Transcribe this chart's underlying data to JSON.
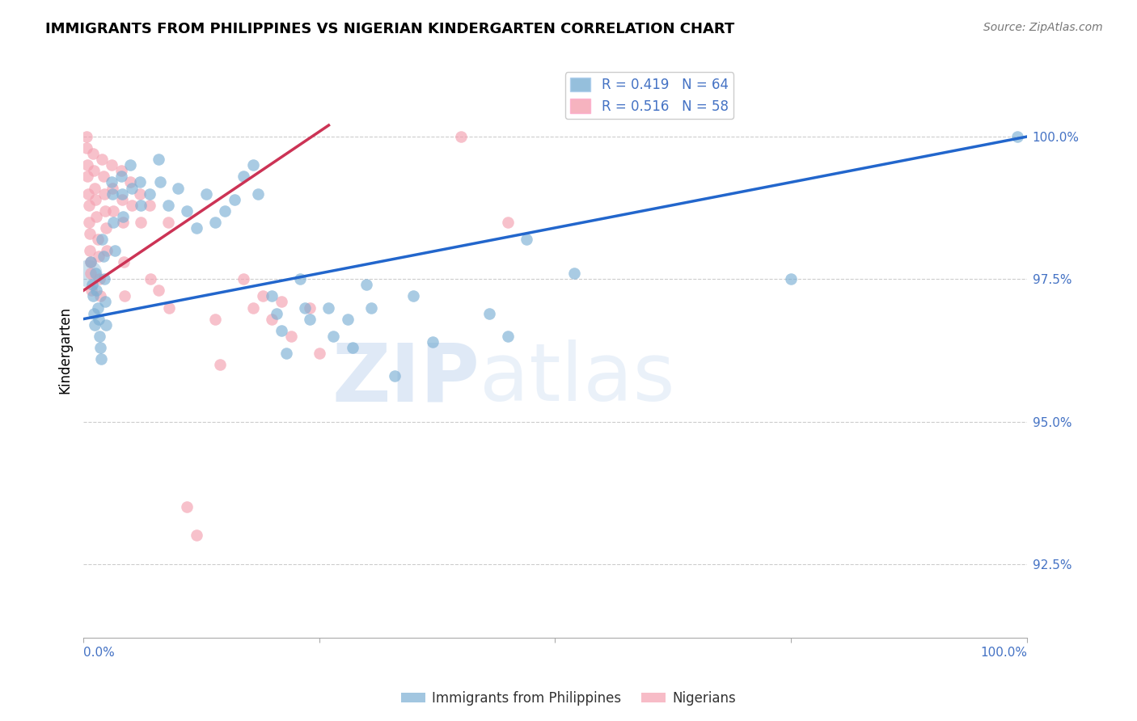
{
  "title": "IMMIGRANTS FROM PHILIPPINES VS NIGERIAN KINDERGARTEN CORRELATION CHART",
  "source": "Source: ZipAtlas.com",
  "ylabel": "Kindergarten",
  "y_ticks": [
    92.5,
    95.0,
    97.5,
    100.0
  ],
  "y_tick_labels": [
    "92.5%",
    "95.0%",
    "97.5%",
    "100.0%"
  ],
  "x_range": [
    0.0,
    100.0
  ],
  "y_range": [
    91.2,
    101.3
  ],
  "legend_blue_r": "R = 0.419",
  "legend_blue_n": "N = 64",
  "legend_pink_r": "R = 0.516",
  "legend_pink_n": "N = 58",
  "legend_label_blue": "Immigrants from Philippines",
  "legend_label_pink": "Nigerians",
  "blue_color": "#7bafd4",
  "pink_color": "#f4a0b0",
  "trendline_blue": "#2266cc",
  "trendline_pink": "#cc3355",
  "watermark_zip": "ZIP",
  "watermark_atlas": "atlas",
  "blue_scatter": [
    [
      0.8,
      97.8
    ],
    [
      0.9,
      97.4
    ],
    [
      1.0,
      97.2
    ],
    [
      1.1,
      96.9
    ],
    [
      1.2,
      96.7
    ],
    [
      1.3,
      97.6
    ],
    [
      1.4,
      97.3
    ],
    [
      1.5,
      97.0
    ],
    [
      1.6,
      96.8
    ],
    [
      1.7,
      96.5
    ],
    [
      1.8,
      96.3
    ],
    [
      1.9,
      96.1
    ],
    [
      2.0,
      98.2
    ],
    [
      2.1,
      97.9
    ],
    [
      2.2,
      97.5
    ],
    [
      2.3,
      97.1
    ],
    [
      2.4,
      96.7
    ],
    [
      3.0,
      99.2
    ],
    [
      3.1,
      99.0
    ],
    [
      3.2,
      98.5
    ],
    [
      3.3,
      98.0
    ],
    [
      4.0,
      99.3
    ],
    [
      4.1,
      99.0
    ],
    [
      4.2,
      98.6
    ],
    [
      5.0,
      99.5
    ],
    [
      5.1,
      99.1
    ],
    [
      6.0,
      99.2
    ],
    [
      6.1,
      98.8
    ],
    [
      7.0,
      99.0
    ],
    [
      8.0,
      99.6
    ],
    [
      8.1,
      99.2
    ],
    [
      9.0,
      98.8
    ],
    [
      10.0,
      99.1
    ],
    [
      11.0,
      98.7
    ],
    [
      12.0,
      98.4
    ],
    [
      13.0,
      99.0
    ],
    [
      14.0,
      98.5
    ],
    [
      15.0,
      98.7
    ],
    [
      16.0,
      98.9
    ],
    [
      17.0,
      99.3
    ],
    [
      18.0,
      99.5
    ],
    [
      18.5,
      99.0
    ],
    [
      20.0,
      97.2
    ],
    [
      20.5,
      96.9
    ],
    [
      21.0,
      96.6
    ],
    [
      21.5,
      96.2
    ],
    [
      23.0,
      97.5
    ],
    [
      23.5,
      97.0
    ],
    [
      24.0,
      96.8
    ],
    [
      26.0,
      97.0
    ],
    [
      26.5,
      96.5
    ],
    [
      28.0,
      96.8
    ],
    [
      28.5,
      96.3
    ],
    [
      30.0,
      97.4
    ],
    [
      30.5,
      97.0
    ],
    [
      33.0,
      95.8
    ],
    [
      35.0,
      97.2
    ],
    [
      37.0,
      96.4
    ],
    [
      43.0,
      96.9
    ],
    [
      45.0,
      96.5
    ],
    [
      47.0,
      98.2
    ],
    [
      52.0,
      97.6
    ],
    [
      75.0,
      97.5
    ],
    [
      99.0,
      100.0
    ]
  ],
  "pink_scatter": [
    [
      0.3,
      100.0
    ],
    [
      0.35,
      99.8
    ],
    [
      0.4,
      99.5
    ],
    [
      0.45,
      99.3
    ],
    [
      0.5,
      99.0
    ],
    [
      0.55,
      98.8
    ],
    [
      0.6,
      98.5
    ],
    [
      0.65,
      98.3
    ],
    [
      0.7,
      98.0
    ],
    [
      0.75,
      97.8
    ],
    [
      0.8,
      97.6
    ],
    [
      0.85,
      97.3
    ],
    [
      1.0,
      99.7
    ],
    [
      1.1,
      99.4
    ],
    [
      1.2,
      99.1
    ],
    [
      1.3,
      98.9
    ],
    [
      1.4,
      98.6
    ],
    [
      1.5,
      98.2
    ],
    [
      1.6,
      97.9
    ],
    [
      1.7,
      97.5
    ],
    [
      1.8,
      97.2
    ],
    [
      2.0,
      99.6
    ],
    [
      2.1,
      99.3
    ],
    [
      2.2,
      99.0
    ],
    [
      2.3,
      98.7
    ],
    [
      2.4,
      98.4
    ],
    [
      2.5,
      98.0
    ],
    [
      3.0,
      99.5
    ],
    [
      3.1,
      99.1
    ],
    [
      3.2,
      98.7
    ],
    [
      4.0,
      99.4
    ],
    [
      4.1,
      98.9
    ],
    [
      4.2,
      98.5
    ],
    [
      4.3,
      97.8
    ],
    [
      4.4,
      97.2
    ],
    [
      5.0,
      99.2
    ],
    [
      5.1,
      98.8
    ],
    [
      6.0,
      99.0
    ],
    [
      6.1,
      98.5
    ],
    [
      7.0,
      98.8
    ],
    [
      7.1,
      97.5
    ],
    [
      8.0,
      97.3
    ],
    [
      9.0,
      98.5
    ],
    [
      9.1,
      97.0
    ],
    [
      11.0,
      93.5
    ],
    [
      12.0,
      93.0
    ],
    [
      14.0,
      96.8
    ],
    [
      14.5,
      96.0
    ],
    [
      17.0,
      97.5
    ],
    [
      18.0,
      97.0
    ],
    [
      19.0,
      97.2
    ],
    [
      20.0,
      96.8
    ],
    [
      21.0,
      97.1
    ],
    [
      22.0,
      96.5
    ],
    [
      24.0,
      97.0
    ],
    [
      25.0,
      96.2
    ],
    [
      40.0,
      100.0
    ],
    [
      45.0,
      98.5
    ]
  ],
  "blue_trendline_x": [
    0.0,
    100.0
  ],
  "blue_trendline_y": [
    96.8,
    100.0
  ],
  "pink_trendline_x": [
    0.0,
    26.0
  ],
  "pink_trendline_y": [
    97.3,
    100.2
  ]
}
